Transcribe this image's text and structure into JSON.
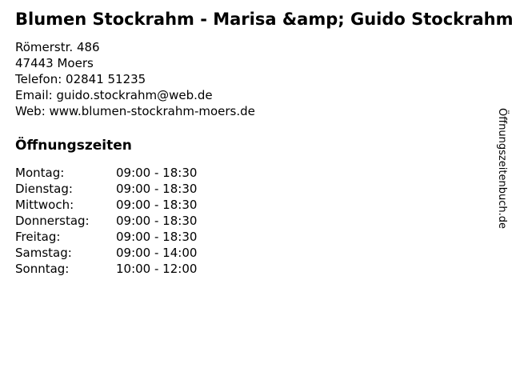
{
  "business": {
    "title": "Blumen Stockrahm - Marisa &amp; Guido Stockrahm",
    "address": {
      "street": "Römerstr. 486",
      "city": "47443 Moers",
      "phone": "Telefon: 02841 51235",
      "email": "Email: guido.stockrahm@web.de",
      "web": "Web: www.blumen-stockrahm-moers.de"
    }
  },
  "hours": {
    "heading": "Öffnungszeiten",
    "rows": [
      {
        "day": "Montag:",
        "time": "09:00 - 18:30"
      },
      {
        "day": "Dienstag:",
        "time": "09:00 - 18:30"
      },
      {
        "day": "Mittwoch:",
        "time": "09:00 - 18:30"
      },
      {
        "day": "Donnerstag:",
        "time": "09:00 - 18:30"
      },
      {
        "day": "Freitag:",
        "time": "09:00 - 18:30"
      },
      {
        "day": "Samstag:",
        "time": "09:00 - 14:00"
      },
      {
        "day": "Sonntag:",
        "time": "10:00 - 12:00"
      }
    ]
  },
  "watermark": {
    "text": "Öffnungszeitenbuch.de"
  },
  "colors": {
    "background": "#ffffff",
    "text": "#000000"
  }
}
